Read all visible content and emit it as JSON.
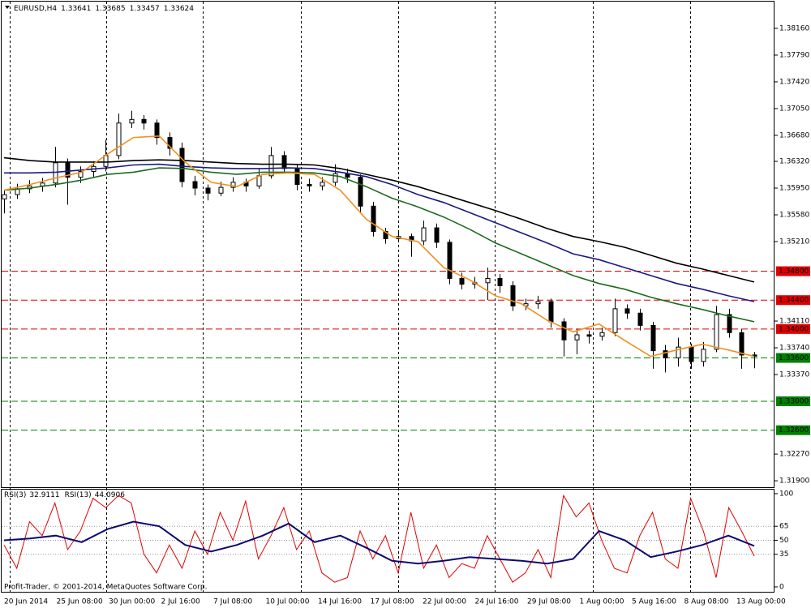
{
  "chart_data": [
    {
      "type": "candlestick",
      "symbol": "EURUSD,H4",
      "ylim": [
        1.318,
        1.3853
      ],
      "yticks": [
        {
          "value": 1.3816,
          "label": "1.38160"
        },
        {
          "value": 1.3779,
          "label": "1.37790"
        },
        {
          "value": 1.3742,
          "label": "1.37420"
        },
        {
          "value": 1.3705,
          "label": "1.37050"
        },
        {
          "value": 1.3668,
          "label": "1.36680"
        },
        {
          "value": 1.3632,
          "label": "1.36320"
        },
        {
          "value": 1.3595,
          "label": "1.35950"
        },
        {
          "value": 1.3558,
          "label": "1.35580"
        },
        {
          "value": 1.3521,
          "label": "1.35210"
        },
        {
          "value": 1.3411,
          "label": "1.34110"
        },
        {
          "value": 1.3374,
          "label": "1.33740"
        },
        {
          "value": 1.3337,
          "label": "1.33370"
        },
        {
          "value": 1.3227,
          "label": "1.32270"
        },
        {
          "value": 1.319,
          "label": "1.31900"
        }
      ],
      "xticks": [
        "20 Jun 2014",
        "25 Jun 08:00",
        "30 Jun 00:00",
        "2 Jul 16:00",
        "7 Jul 08:00",
        "10 Jul 00:00",
        "14 Jul 16:00",
        "17 Jul 08:00",
        "22 Jul 00:00",
        "24 Jul 16:00",
        "29 Jul 08:00",
        "1 Aug 00:00",
        "5 Aug 16:00",
        "8 Aug 08:00",
        "13 Aug 00:00"
      ],
      "levels": [
        {
          "value": 1.348,
          "label": "1.34800",
          "color": "#e00000"
        },
        {
          "value": 1.344,
          "label": "1.34400",
          "color": "#e00000"
        },
        {
          "value": 1.34,
          "label": "1.34000",
          "color": "#e00000"
        },
        {
          "value": 1.336,
          "label": "1.33600",
          "color": "#008000"
        },
        {
          "value": 1.33,
          "label": "1.33000",
          "color": "#008000"
        },
        {
          "value": 1.326,
          "label": "1.32600",
          "color": "#008000"
        }
      ],
      "ohlc": [
        [
          1.358,
          1.3592,
          1.356,
          1.3586
        ],
        [
          1.3586,
          1.3601,
          1.358,
          1.3594
        ],
        [
          1.3594,
          1.3606,
          1.3588,
          1.3598
        ],
        [
          1.3598,
          1.3609,
          1.359,
          1.3602
        ],
        [
          1.3602,
          1.3652,
          1.3596,
          1.363
        ],
        [
          1.363,
          1.3636,
          1.3572,
          1.361
        ],
        [
          1.361,
          1.3625,
          1.3602,
          1.3618
        ],
        [
          1.3618,
          1.3632,
          1.361,
          1.3625
        ],
        [
          1.3625,
          1.3662,
          1.3618,
          1.364
        ],
        [
          1.364,
          1.3698,
          1.3635,
          1.3685
        ],
        [
          1.3685,
          1.3702,
          1.3678,
          1.369
        ],
        [
          1.369,
          1.3696,
          1.3676,
          1.3685
        ],
        [
          1.3685,
          1.369,
          1.3655,
          1.3665
        ],
        [
          1.3665,
          1.3672,
          1.364,
          1.365
        ],
        [
          1.365,
          1.3658,
          1.3596,
          1.3604
        ],
        [
          1.3604,
          1.3612,
          1.3585,
          1.3595
        ],
        [
          1.3595,
          1.36,
          1.3578,
          1.3588
        ],
        [
          1.3588,
          1.3604,
          1.3584,
          1.3596
        ],
        [
          1.3596,
          1.361,
          1.359,
          1.3603
        ],
        [
          1.3603,
          1.3608,
          1.359,
          1.3598
        ],
        [
          1.3598,
          1.3622,
          1.3594,
          1.3612
        ],
        [
          1.3612,
          1.3652,
          1.3608,
          1.364
        ],
        [
          1.364,
          1.3646,
          1.3615,
          1.3622
        ],
        [
          1.3622,
          1.3628,
          1.3592,
          1.36
        ],
        [
          1.36,
          1.3608,
          1.359,
          1.3598
        ],
        [
          1.3598,
          1.361,
          1.3592,
          1.3603
        ],
        [
          1.3603,
          1.3628,
          1.3598,
          1.3615
        ],
        [
          1.3615,
          1.3622,
          1.3602,
          1.361
        ],
        [
          1.361,
          1.3614,
          1.356,
          1.357
        ],
        [
          1.357,
          1.3576,
          1.3528,
          1.3535
        ],
        [
          1.3535,
          1.354,
          1.3518,
          1.3525
        ],
        [
          1.3525,
          1.3536,
          1.352,
          1.3528
        ],
        [
          1.3528,
          1.3532,
          1.35,
          1.3522
        ],
        [
          1.3522,
          1.355,
          1.3516,
          1.354
        ],
        [
          1.354,
          1.3546,
          1.3512,
          1.352
        ],
        [
          1.352,
          1.3524,
          1.3462,
          1.347
        ],
        [
          1.347,
          1.3478,
          1.3455,
          1.3462
        ],
        [
          1.3462,
          1.3472,
          1.3456,
          1.3464
        ],
        [
          1.3464,
          1.3485,
          1.344,
          1.347
        ],
        [
          1.347,
          1.3476,
          1.345,
          1.346
        ],
        [
          1.346,
          1.3466,
          1.3425,
          1.3432
        ],
        [
          1.3432,
          1.3442,
          1.3426,
          1.3435
        ],
        [
          1.3435,
          1.3446,
          1.3428,
          1.3438
        ],
        [
          1.3438,
          1.3442,
          1.3402,
          1.341
        ],
        [
          1.341,
          1.3415,
          1.3362,
          1.3385
        ],
        [
          1.3385,
          1.34,
          1.3365,
          1.3392
        ],
        [
          1.3392,
          1.3398,
          1.338,
          1.339
        ],
        [
          1.339,
          1.3402,
          1.3384,
          1.3395
        ],
        [
          1.3395,
          1.3442,
          1.339,
          1.3428
        ],
        [
          1.3428,
          1.3434,
          1.3414,
          1.3422
        ],
        [
          1.3422,
          1.3428,
          1.3398,
          1.3405
        ],
        [
          1.3405,
          1.341,
          1.3345,
          1.337
        ],
        [
          1.337,
          1.3378,
          1.334,
          1.336
        ],
        [
          1.336,
          1.3388,
          1.3348,
          1.3375
        ],
        [
          1.3375,
          1.338,
          1.3345,
          1.3355
        ],
        [
          1.3355,
          1.3382,
          1.3348,
          1.3372
        ],
        [
          1.3372,
          1.3432,
          1.3368,
          1.342
        ],
        [
          1.342,
          1.3428,
          1.3388,
          1.3395
        ],
        [
          1.3395,
          1.34,
          1.3345,
          1.3364
        ],
        [
          1.33641,
          1.33685,
          1.33457,
          1.33624
        ]
      ],
      "series": [
        {
          "color": "#000000",
          "values": [
            1.3637,
            1.3633,
            1.3631,
            1.3631,
            1.3631,
            1.3633,
            1.3634,
            1.3633,
            1.3631,
            1.3629,
            1.3628,
            1.3628,
            1.3627,
            1.3622,
            1.3614,
            1.3606,
            1.3597,
            1.3586,
            1.3575,
            1.3564,
            1.3552,
            1.3539,
            1.3528,
            1.3521,
            1.3513,
            1.3502,
            1.3491,
            1.3483,
            1.3474,
            1.3465
          ]
        },
        {
          "color": "#1a1a80",
          "values": [
            1.3616,
            1.3616,
            1.3617,
            1.362,
            1.3623,
            1.3627,
            1.3628,
            1.3625,
            1.3623,
            1.3622,
            1.3622,
            1.3623,
            1.3622,
            1.3617,
            1.3611,
            1.36,
            1.3586,
            1.3575,
            1.3561,
            1.3547,
            1.3533,
            1.3519,
            1.3504,
            1.3496,
            1.3485,
            1.3474,
            1.3463,
            1.3455,
            1.3446,
            1.3438
          ]
        },
        {
          "color": "#1e6b1e",
          "values": [
            1.3592,
            1.3595,
            1.36,
            1.3606,
            1.3614,
            1.3617,
            1.3623,
            1.3622,
            1.3617,
            1.3614,
            1.3617,
            1.3617,
            1.3616,
            1.3611,
            1.3597,
            1.3581,
            1.3569,
            1.3555,
            1.3538,
            1.3519,
            1.3504,
            1.3489,
            1.3474,
            1.3463,
            1.3455,
            1.3444,
            1.3435,
            1.3427,
            1.3418,
            1.341
          ]
        },
        {
          "color": "#f0901e",
          "values": [
            1.3592,
            1.36,
            1.3609,
            1.3617,
            1.3642,
            1.3665,
            1.3667,
            1.3631,
            1.3603,
            1.3597,
            1.3614,
            1.3616,
            1.3614,
            1.3592,
            1.3552,
            1.3528,
            1.3521,
            1.3485,
            1.3468,
            1.3446,
            1.3435,
            1.3412,
            1.3396,
            1.3407,
            1.3384,
            1.3362,
            1.3371,
            1.3379,
            1.3371,
            1.3362
          ]
        }
      ]
    },
    {
      "type": "line",
      "ylim": [
        -6.1,
        104.3
      ],
      "yticks": [
        100,
        65,
        50,
        35,
        0
      ],
      "footer": "Profit-Trader, © 2001-2014, MetaQuotes Software Corp.",
      "series": [
        {
          "name": "RSI(3)",
          "current": 32.9111,
          "color": "#e00000",
          "values": [
            45,
            20,
            70,
            55,
            90,
            40,
            60,
            95,
            85,
            98,
            90,
            35,
            15,
            45,
            20,
            60,
            35,
            80,
            50,
            92,
            30,
            55,
            85,
            40,
            60,
            15,
            5,
            10,
            60,
            30,
            55,
            15,
            80,
            20,
            45,
            10,
            25,
            20,
            55,
            30,
            5,
            15,
            40,
            10,
            98,
            75,
            90,
            50,
            20,
            15,
            55,
            80,
            30,
            20,
            95,
            60,
            10,
            85,
            60,
            33
          ]
        },
        {
          "name": "RSI(13)",
          "current": 44.0906,
          "color": "#0a0a70",
          "values": [
            50,
            52,
            55,
            48,
            62,
            70,
            65,
            45,
            38,
            45,
            55,
            68,
            48,
            55,
            42,
            28,
            25,
            28,
            32,
            30,
            28,
            25,
            30,
            60,
            50,
            32,
            38,
            45,
            55,
            44
          ]
        }
      ]
    }
  ]
}
